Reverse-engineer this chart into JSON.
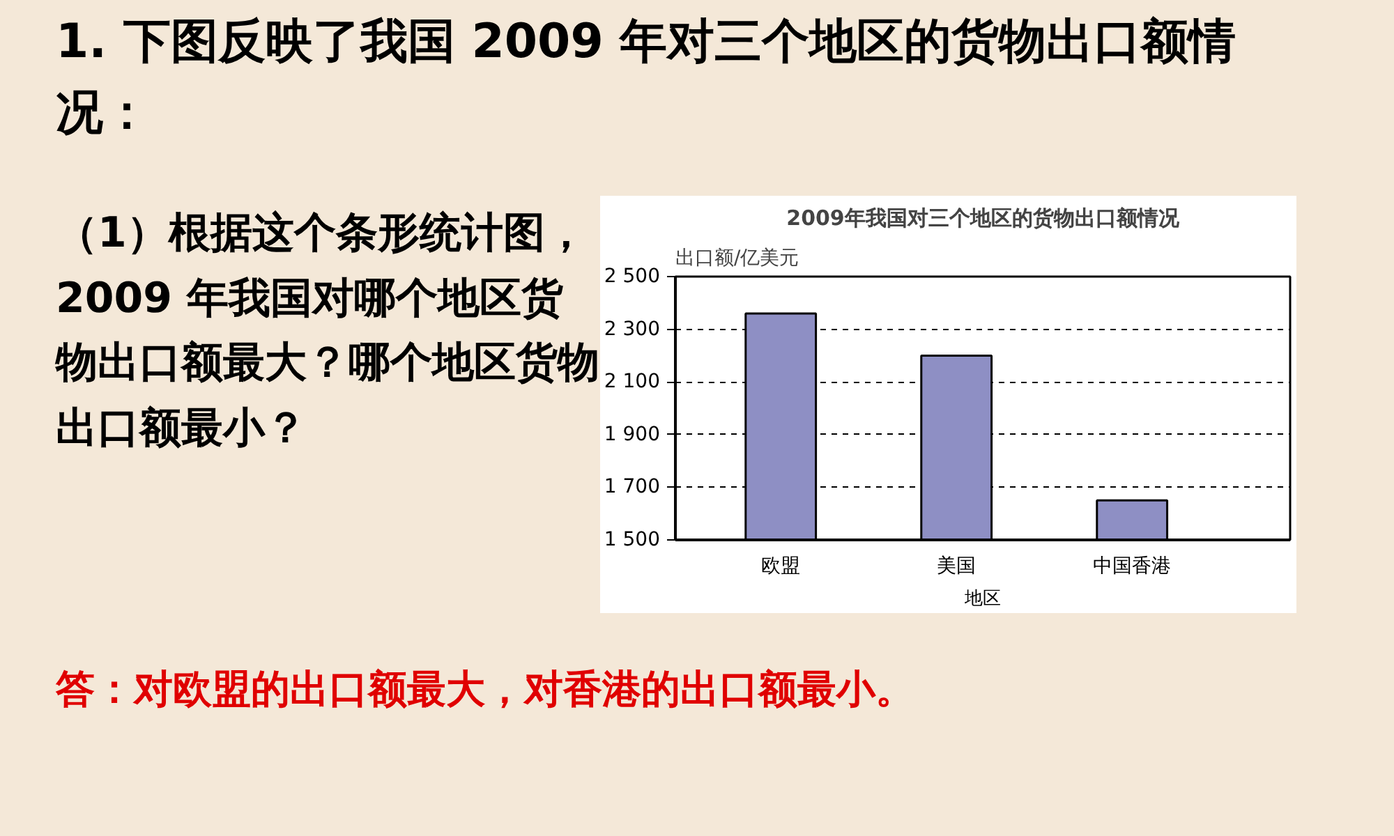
{
  "chart_data": {
    "type": "bar",
    "title": "2009年我国对三个地区的货物出口额情况",
    "ylabel": "出口额/亿美元",
    "xlabel": "地区",
    "categories": [
      "欧盟",
      "美国",
      "中国香港"
    ],
    "values": [
      2360,
      2200,
      1650
    ],
    "color": "#8e8fc4",
    "ylim": [
      1500,
      2500
    ],
    "yticks": [
      {
        "value": 1500,
        "label": "1 500"
      },
      {
        "value": 1700,
        "label": "1 700"
      },
      {
        "value": 1900,
        "label": "1 900"
      },
      {
        "value": 2100,
        "label": "2 100"
      },
      {
        "value": 2300,
        "label": "2 300"
      },
      {
        "value": 2500,
        "label": "2 500"
      }
    ],
    "grid": "y",
    "annotations": [
      "1.  下图反映了我国 2009 年对三个地区的货物出口额情况：",
      "（1）根据这个条形统计图， 2009 年我国对哪个地区货物出口额最大？哪个地区货物出口额最小？",
      "答：对欧盟的出口额最大，对香港的出口额最小。"
    ]
  }
}
